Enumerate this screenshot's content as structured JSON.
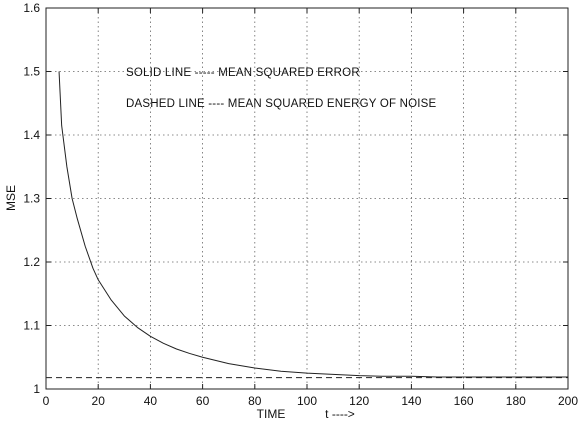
{
  "chart_data": {
    "type": "line",
    "title": "",
    "xlabel": "TIME",
    "xlabel_suffix": "t ---->",
    "ylabel": "MSE",
    "xlim": [
      0,
      200
    ],
    "ylim": [
      1,
      1.6
    ],
    "grid": true,
    "x_ticks": [
      "0",
      "20",
      "40",
      "60",
      "80",
      "100",
      "120",
      "140",
      "160",
      "180",
      "200"
    ],
    "y_ticks": [
      "1",
      "1.1",
      "1.2",
      "1.3",
      "1.4",
      "1.5",
      "1.6"
    ],
    "annotations": [
      "SOLID LINE ----- MEAN SQUARED ERROR",
      "DASHED LINE ---- MEAN SQUARED ENERGY OF NOISE"
    ],
    "series": [
      {
        "style": "solid",
        "x": [
          5,
          6,
          8,
          10,
          12,
          15,
          18,
          20,
          25,
          30,
          35,
          40,
          45,
          50,
          55,
          60,
          70,
          80,
          90,
          100,
          110,
          120,
          130,
          140,
          150,
          160,
          170,
          180,
          190,
          200
        ],
        "y": [
          1.5,
          1.415,
          1.35,
          1.3,
          1.268,
          1.225,
          1.19,
          1.172,
          1.14,
          1.115,
          1.097,
          1.083,
          1.072,
          1.063,
          1.056,
          1.05,
          1.04,
          1.033,
          1.028,
          1.025,
          1.023,
          1.021,
          1.02,
          1.02,
          1.019,
          1.019,
          1.019,
          1.019,
          1.019,
          1.019
        ]
      },
      {
        "style": "dashed",
        "x": [
          0,
          200
        ],
        "y": [
          1.018,
          1.018
        ]
      }
    ],
    "colors": {
      "axes": "#222222",
      "grid": "#666666",
      "line": "#222222"
    }
  }
}
